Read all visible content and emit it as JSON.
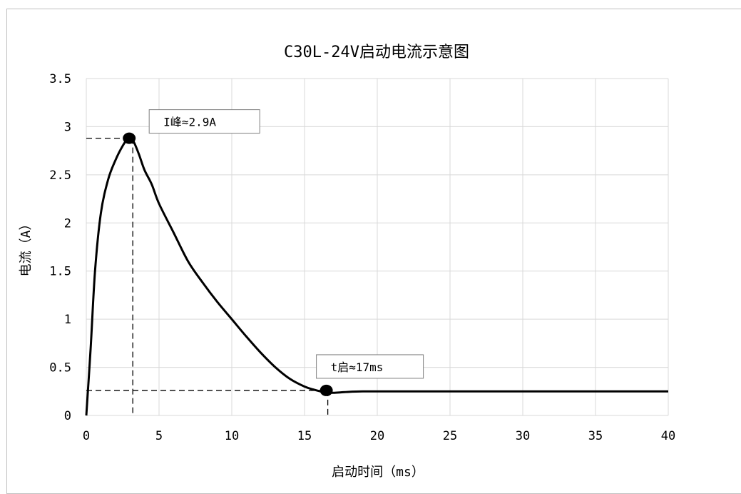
{
  "chart_data": {
    "type": "line",
    "title": "C30L-24V启动电流示意图",
    "xlabel": "启动时间（ms）",
    "ylabel": "电流（A）",
    "xlim": [
      0,
      40
    ],
    "ylim": [
      0,
      3.5
    ],
    "xticks": [
      0,
      5,
      10,
      15,
      20,
      25,
      30,
      35,
      40
    ],
    "yticks": [
      0,
      0.5,
      1,
      1.5,
      2,
      2.5,
      3,
      3.5
    ],
    "xtick_labels": [
      "0",
      "5",
      "10",
      "15",
      "20",
      "25",
      "30",
      "35",
      "40"
    ],
    "ytick_labels": [
      "0",
      "0.5",
      "1",
      "1.5",
      "2",
      "2.5",
      "3",
      "3.5"
    ],
    "grid": true,
    "series": [
      {
        "color": "#000000",
        "x": [
          0,
          0.3,
          0.6,
          1.0,
          1.5,
          2.0,
          2.5,
          2.9,
          3.2,
          3.6,
          4.0,
          4.5,
          5.0,
          6.0,
          7.0,
          8.0,
          9.0,
          10.0,
          11.0,
          12.0,
          13.0,
          14.0,
          15.0,
          15.6,
          16.1,
          16.6,
          17.0,
          17.5,
          18.0,
          19.0,
          20.0,
          25.0,
          30.0,
          35.0,
          40.0
        ],
        "y": [
          0,
          0.7,
          1.5,
          2.1,
          2.45,
          2.65,
          2.8,
          2.88,
          2.86,
          2.72,
          2.55,
          2.4,
          2.2,
          1.9,
          1.6,
          1.38,
          1.18,
          1.0,
          0.82,
          0.65,
          0.5,
          0.38,
          0.3,
          0.27,
          0.25,
          0.24,
          0.235,
          0.24,
          0.245,
          0.25,
          0.25,
          0.25,
          0.25,
          0.25,
          0.25
        ]
      }
    ],
    "annotations": [
      {
        "text": "I峰≈2.9A",
        "point": [
          2.95,
          2.88
        ]
      },
      {
        "text": "t启≈17ms",
        "point": [
          16.5,
          0.26
        ]
      }
    ]
  }
}
